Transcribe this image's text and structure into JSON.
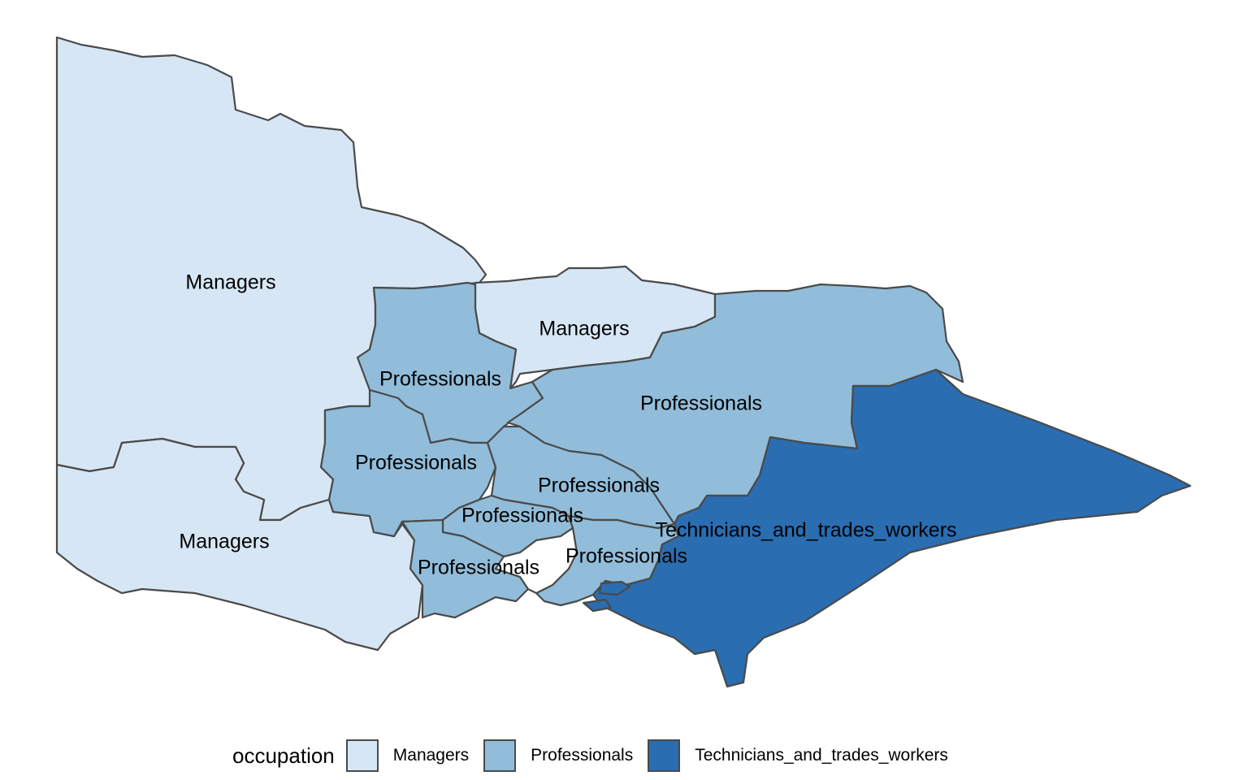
{
  "colors": {
    "Managers": "#d7e6f4",
    "Professionals": "#91bdda",
    "Technicians_and_trades_workers": "#2a6db0",
    "outline": "#4a4a4a",
    "water": "#ffffff"
  },
  "regions": [
    {
      "id": "north-west",
      "occupation": "Managers",
      "label": "Managers"
    },
    {
      "id": "south-west",
      "occupation": "Managers",
      "label": "Managers"
    },
    {
      "id": "north-central",
      "occupation": "Managers",
      "label": "Managers"
    },
    {
      "id": "bendigo",
      "occupation": "Professionals",
      "label": "Professionals"
    },
    {
      "id": "ballarat",
      "occupation": "Professionals",
      "label": "Professionals"
    },
    {
      "id": "hume",
      "occupation": "Professionals",
      "label": "Professionals"
    },
    {
      "id": "melbourne-north",
      "occupation": "Professionals",
      "label": "Professionals"
    },
    {
      "id": "melbourne-west",
      "occupation": "Professionals",
      "label": "Professionals"
    },
    {
      "id": "geelong",
      "occupation": "Professionals",
      "label": "Professionals"
    },
    {
      "id": "melbourne-south-east",
      "occupation": "Professionals",
      "label": "Professionals"
    },
    {
      "id": "gippsland",
      "occupation": "Technicians_and_trades_workers",
      "label": "Technicians_and_trades_workers"
    }
  ],
  "legend": {
    "title": "occupation",
    "items": [
      {
        "key": "Managers",
        "label": "Managers"
      },
      {
        "key": "Professionals",
        "label": "Professionals"
      },
      {
        "key": "Technicians_and_trades_workers",
        "label": "Technicians_and_trades_workers"
      }
    ]
  }
}
